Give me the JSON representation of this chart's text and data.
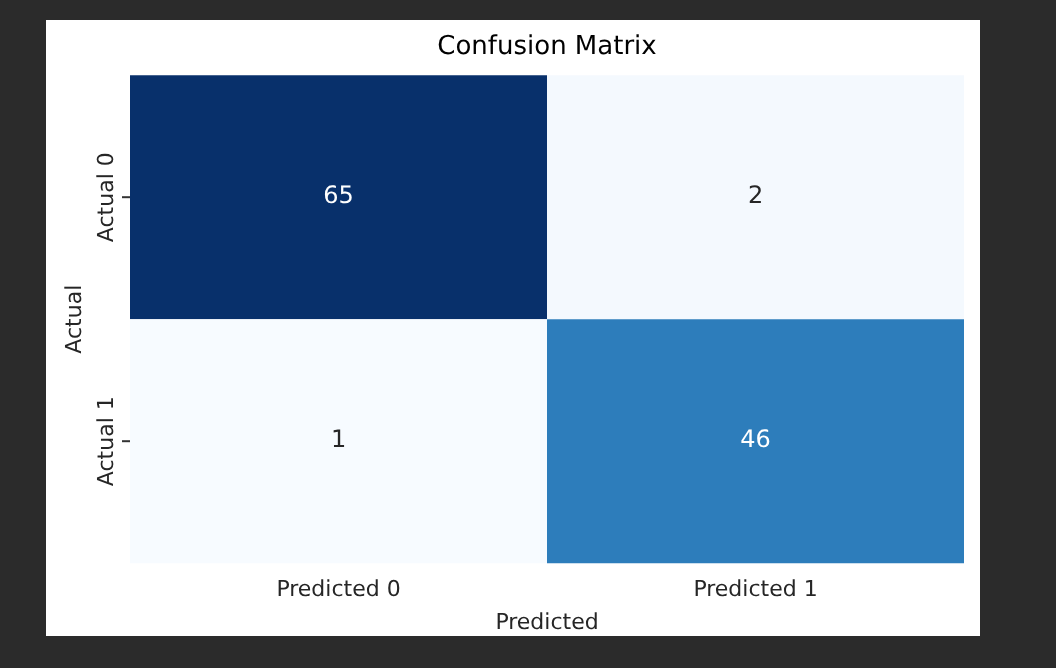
{
  "chart_data": {
    "type": "heatmap",
    "title": "Confusion Matrix",
    "xlabel": "Predicted",
    "ylabel": "Actual",
    "categories": [
      "Predicted 0",
      "Predicted 1"
    ],
    "y_categories": [
      "Actual 0",
      "Actual 1"
    ],
    "data_labels": true,
    "cells": [
      [
        65,
        2
      ],
      [
        1,
        46
      ]
    ]
  }
}
